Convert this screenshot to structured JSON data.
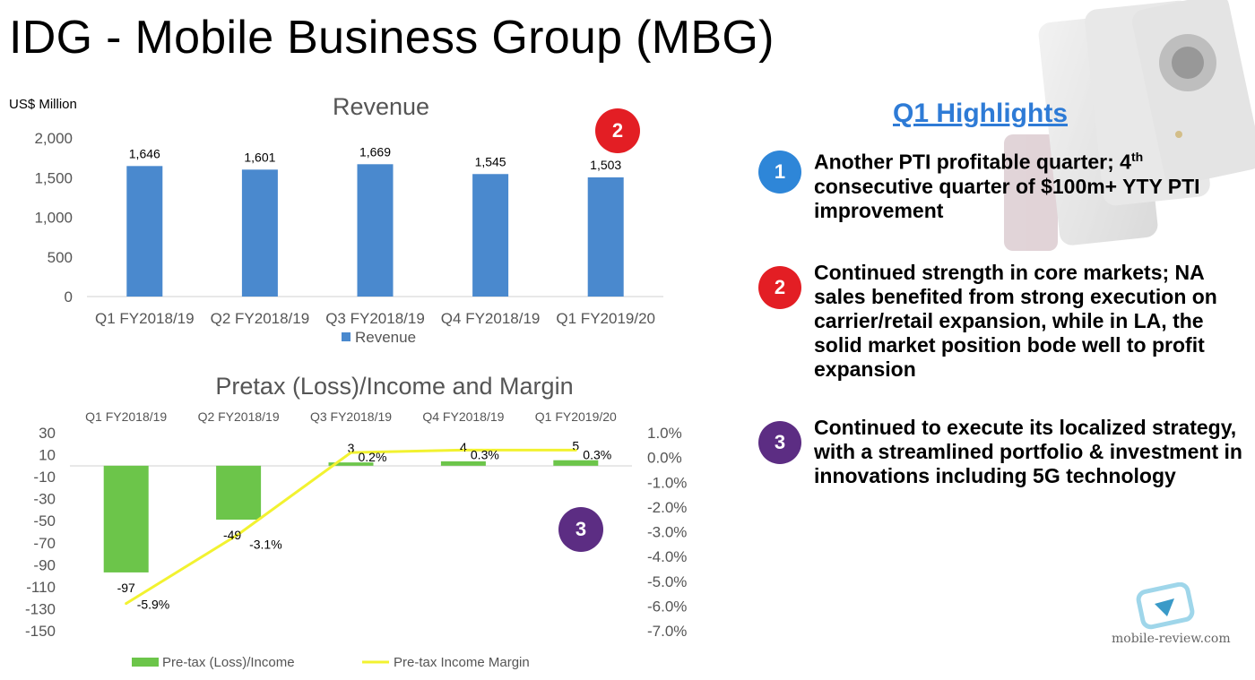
{
  "page": {
    "title": "IDG - Mobile Business Group (MBG)"
  },
  "colors": {
    "bar_blue": "#4A89CE",
    "bar_green": "#6CC54A",
    "line_yellow": "#F2F230",
    "badge_blue": "#2E86D8",
    "badge_red": "#E31E24",
    "badge_purple": "#5C2D83",
    "highlight_title": "#2E7BD6"
  },
  "badges": {
    "revenue_badge": "2",
    "pretax_badge": "3"
  },
  "highlights": {
    "title": "Q1 Highlights",
    "items": [
      {
        "num": "1",
        "text_a": "Another PTI profitable quarter; 4",
        "sup": "th",
        "text_b": " consecutive quarter of $100m+ YTY PTI improvement",
        "color": "#2E86D8"
      },
      {
        "num": "2",
        "text": "Continued strength in core markets; NA sales benefited from strong execution on carrier/retail expansion, while in LA, the solid market position bode well to profit expansion",
        "color": "#E31E24"
      },
      {
        "num": "3",
        "text": "Continued to execute its localized strategy, with a streamlined portfolio & investment in innovations including 5G technology",
        "color": "#5C2D83"
      }
    ]
  },
  "watermark": {
    "text": "mobile-review.com"
  },
  "chart_data": [
    {
      "type": "bar",
      "title": "Revenue",
      "unit_label": "US$ Million",
      "categories": [
        "Q1 FY2018/19",
        "Q2 FY2018/19",
        "Q3 FY2018/19",
        "Q4 FY2018/19",
        "Q1 FY2019/20"
      ],
      "series": [
        {
          "name": "Revenue",
          "values": [
            1646,
            1601,
            1669,
            1545,
            1503
          ]
        }
      ],
      "data_labels": [
        "1,646",
        "1,601",
        "1,669",
        "1,545",
        "1,503"
      ],
      "ylim": [
        0,
        2000
      ],
      "yticks": [
        0,
        500,
        1000,
        1500,
        2000
      ],
      "ytick_labels": [
        "0",
        "500",
        "1,000",
        "1,500",
        "2,000"
      ],
      "legend": "bottom",
      "grid": false
    },
    {
      "type": "bar",
      "title": "Pretax (Loss)/Income and Margin",
      "categories": [
        "Q1 FY2018/19",
        "Q2 FY2018/19",
        "Q3 FY2018/19",
        "Q4 FY2018/19",
        "Q1 FY2019/20"
      ],
      "series": [
        {
          "name": "Pre-tax (Loss)/Income",
          "type": "bar",
          "axis": "left",
          "values": [
            -97,
            -49,
            3,
            4,
            5
          ],
          "labels": [
            "-97",
            "-49",
            "3",
            "4",
            "5"
          ]
        },
        {
          "name": "Pre-tax Income Margin",
          "type": "line",
          "axis": "right",
          "values": [
            -5.9,
            -3.1,
            0.2,
            0.3,
            0.3
          ],
          "labels": [
            "-5.9%",
            "-3.1%",
            "0.2%",
            "0.3%",
            "0.3%"
          ]
        }
      ],
      "y_left": {
        "ticks": [
          30,
          10,
          -10,
          -30,
          -50,
          -70,
          -90,
          -110,
          -130,
          -150
        ],
        "labels": [
          "30",
          "10",
          "-10",
          "-30",
          "-50",
          "-70",
          "-90",
          "-110",
          "-130",
          "-150"
        ]
      },
      "y_right": {
        "ticks": [
          1,
          0,
          -1,
          -2,
          -3,
          -4,
          -5,
          -6,
          -7
        ],
        "labels": [
          "1.0%",
          "0.0%",
          "-1.0%",
          "-2.0%",
          "-3.0%",
          "-4.0%",
          "-5.0%",
          "-6.0%",
          "-7.0%"
        ]
      },
      "legend": "bottom",
      "grid": false
    }
  ]
}
